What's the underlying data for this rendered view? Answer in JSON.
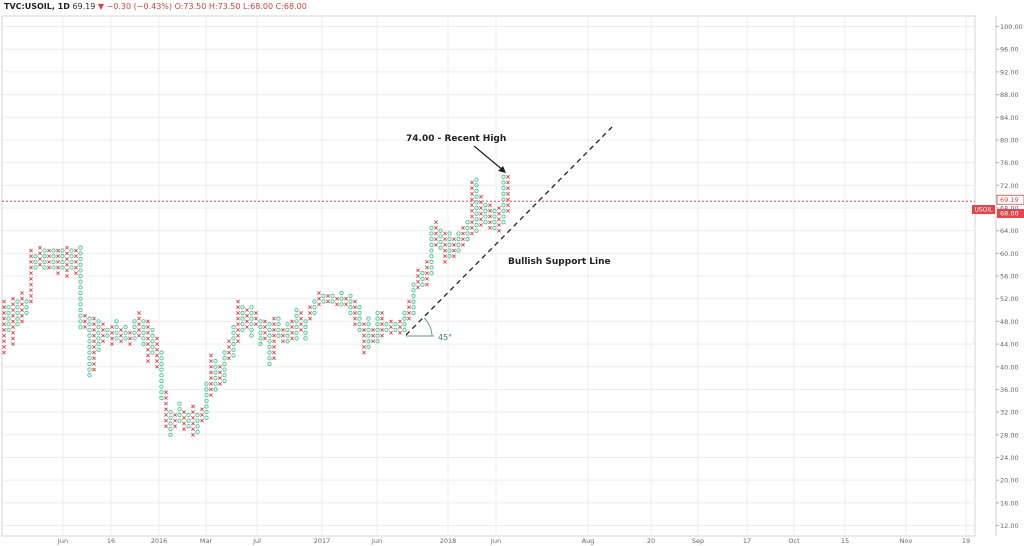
{
  "header": {
    "symbol": "TVC:USOIL, 1D",
    "last": "69.19",
    "arrow": "▼",
    "change": "−0.30 (−0.43%)",
    "ohlc": "O:73.50 H:73.50 L:68.00 C:68.00"
  },
  "colors": {
    "x_mark": "#e0474c",
    "o_mark": "#45c596",
    "price_line": "#e0474c",
    "grid": "#ececec",
    "axis_text": "#666666"
  },
  "chart_data": {
    "type": "point-and-figure",
    "instrument": "USOIL",
    "timeframe": "1D",
    "y_axis": {
      "ticks": [
        "100.00",
        "96.00",
        "92.00",
        "88.00",
        "84.00",
        "80.00",
        "76.00",
        "72.00",
        "68.00",
        "64.00",
        "60.00",
        "56.00",
        "52.00",
        "48.00",
        "44.00",
        "40.00",
        "36.00",
        "32.00",
        "28.00",
        "24.00",
        "20.00",
        "16.00",
        "12.00"
      ],
      "range": [
        10,
        102
      ]
    },
    "x_axis": {
      "ticks": [
        "Jun",
        "16",
        "2016",
        "Mar",
        "Jul",
        "2017",
        "Jun",
        "2018",
        "Jun",
        "Aug",
        "20",
        "Sep",
        "17",
        "Oct",
        "15",
        "Nov",
        "19"
      ]
    },
    "last_price_labels": [
      {
        "text": "69.19",
        "price": 69.19
      },
      {
        "text": "68.00",
        "price": 68.0
      }
    ],
    "price_badge": {
      "text": "USOIL",
      "price": 68.0
    },
    "columns": [
      {
        "bottom": 42.5,
        "top": 51.5
      },
      {
        "bottom": 46.5,
        "top": 50.5
      },
      {
        "bottom": 44.0,
        "top": 52.5
      },
      {
        "bottom": 47.5,
        "top": 51.5
      },
      {
        "bottom": 48.0,
        "top": 53.5
      },
      {
        "bottom": 49.5,
        "top": 52.0
      },
      {
        "bottom": 51.5,
        "top": 60.5
      },
      {
        "bottom": 57.5,
        "top": 60.0
      },
      {
        "bottom": 58.0,
        "top": 61.5
      },
      {
        "bottom": 57.5,
        "top": 60.5
      },
      {
        "bottom": 57.5,
        "top": 61.0
      },
      {
        "bottom": 57.5,
        "top": 60.5
      },
      {
        "bottom": 56.5,
        "top": 60.5
      },
      {
        "bottom": 57.5,
        "top": 61.0
      },
      {
        "bottom": 56.0,
        "top": 61.5
      },
      {
        "bottom": 57.5,
        "top": 60.5
      },
      {
        "bottom": 56.5,
        "top": 61.0
      },
      {
        "bottom": 47.0,
        "top": 61.0
      },
      {
        "bottom": 47.0,
        "top": 49.5
      },
      {
        "bottom": 38.5,
        "top": 49.0
      },
      {
        "bottom": 39.5,
        "top": 48.5
      },
      {
        "bottom": 43.0,
        "top": 48.0
      },
      {
        "bottom": 44.5,
        "top": 47.5
      },
      {
        "bottom": 45.5,
        "top": 47.0
      },
      {
        "bottom": 44.0,
        "top": 47.5
      },
      {
        "bottom": 45.0,
        "top": 48.0
      },
      {
        "bottom": 44.5,
        "top": 46.5
      },
      {
        "bottom": 45.0,
        "top": 47.5
      },
      {
        "bottom": 44.0,
        "top": 46.5
      },
      {
        "bottom": 45.0,
        "top": 48.5
      },
      {
        "bottom": 45.5,
        "top": 49.5
      },
      {
        "bottom": 44.0,
        "top": 48.5
      },
      {
        "bottom": 41.0,
        "top": 48.0
      },
      {
        "bottom": 42.5,
        "top": 46.5
      },
      {
        "bottom": 40.0,
        "top": 45.5
      },
      {
        "bottom": 34.5,
        "top": 42.5
      },
      {
        "bottom": 29.5,
        "top": 36.0
      },
      {
        "bottom": 28.0,
        "top": 32.5
      },
      {
        "bottom": 29.5,
        "top": 31.5
      },
      {
        "bottom": 30.5,
        "top": 33.5
      },
      {
        "bottom": 29.0,
        "top": 32.5
      },
      {
        "bottom": 29.5,
        "top": 31.5
      },
      {
        "bottom": 28.0,
        "top": 33.0
      },
      {
        "bottom": 28.5,
        "top": 31.5
      },
      {
        "bottom": 30.5,
        "top": 33.0
      },
      {
        "bottom": 31.0,
        "top": 37.0
      },
      {
        "bottom": 35.0,
        "top": 42.0
      },
      {
        "bottom": 36.0,
        "top": 41.5
      },
      {
        "bottom": 37.0,
        "top": 40.5
      },
      {
        "bottom": 37.5,
        "top": 43.0
      },
      {
        "bottom": 41.5,
        "top": 45.0
      },
      {
        "bottom": 42.0,
        "top": 47.5
      },
      {
        "bottom": 44.5,
        "top": 51.5
      },
      {
        "bottom": 46.5,
        "top": 50.5
      },
      {
        "bottom": 47.0,
        "top": 50.5
      },
      {
        "bottom": 45.5,
        "top": 50.5
      },
      {
        "bottom": 47.5,
        "top": 50.0
      },
      {
        "bottom": 44.0,
        "top": 48.5
      },
      {
        "bottom": 45.0,
        "top": 48.0
      },
      {
        "bottom": 40.5,
        "top": 47.5
      },
      {
        "bottom": 41.5,
        "top": 49.0
      },
      {
        "bottom": 45.5,
        "top": 48.5
      },
      {
        "bottom": 44.5,
        "top": 47.0
      },
      {
        "bottom": 44.5,
        "top": 48.0
      },
      {
        "bottom": 45.0,
        "top": 48.5
      },
      {
        "bottom": 45.0,
        "top": 50.5
      },
      {
        "bottom": 46.5,
        "top": 49.5
      },
      {
        "bottom": 45.0,
        "top": 48.0
      },
      {
        "bottom": 48.5,
        "top": 50.5
      },
      {
        "bottom": 49.5,
        "top": 52.0
      },
      {
        "bottom": 51.0,
        "top": 53.5
      },
      {
        "bottom": 51.5,
        "top": 53.0
      },
      {
        "bottom": 51.5,
        "top": 52.5
      },
      {
        "bottom": 51.5,
        "top": 53.0
      },
      {
        "bottom": 51.0,
        "top": 52.5
      },
      {
        "bottom": 51.0,
        "top": 53.5
      },
      {
        "bottom": 51.0,
        "top": 52.5
      },
      {
        "bottom": 49.5,
        "top": 53.0
      },
      {
        "bottom": 47.5,
        "top": 51.5
      },
      {
        "bottom": 46.5,
        "top": 51.0
      },
      {
        "bottom": 42.5,
        "top": 48.0
      },
      {
        "bottom": 43.5,
        "top": 48.5
      },
      {
        "bottom": 44.5,
        "top": 46.5
      },
      {
        "bottom": 44.5,
        "top": 50.0
      },
      {
        "bottom": 45.5,
        "top": 49.5
      },
      {
        "bottom": 46.5,
        "top": 48.0
      },
      {
        "bottom": 46.0,
        "top": 48.5
      },
      {
        "bottom": 46.5,
        "top": 47.5
      },
      {
        "bottom": 46.0,
        "top": 48.5
      },
      {
        "bottom": 46.5,
        "top": 49.5
      },
      {
        "bottom": 48.5,
        "top": 51.5
      },
      {
        "bottom": 49.5,
        "top": 55.0
      },
      {
        "bottom": 54.0,
        "top": 57.5
      },
      {
        "bottom": 54.5,
        "top": 57.0
      },
      {
        "bottom": 54.5,
        "top": 58.5
      },
      {
        "bottom": 56.5,
        "top": 65.0
      },
      {
        "bottom": 61.5,
        "top": 65.5
      },
      {
        "bottom": 61.0,
        "top": 64.5
      },
      {
        "bottom": 58.5,
        "top": 64.0
      },
      {
        "bottom": 59.5,
        "top": 63.5
      },
      {
        "bottom": 59.5,
        "top": 62.5
      },
      {
        "bottom": 60.5,
        "top": 64.0
      },
      {
        "bottom": 61.5,
        "top": 64.5
      },
      {
        "bottom": 62.5,
        "top": 66.0
      },
      {
        "bottom": 63.5,
        "top": 73.0
      },
      {
        "bottom": 64.0,
        "top": 73.0
      },
      {
        "bottom": 65.0,
        "top": 70.5
      },
      {
        "bottom": 65.5,
        "top": 69.0
      },
      {
        "bottom": 64.5,
        "top": 68.5
      },
      {
        "bottom": 64.5,
        "top": 68.0
      },
      {
        "bottom": 64.0,
        "top": 68.0
      },
      {
        "bottom": 65.5,
        "top": 74.0
      },
      {
        "bottom": 67.5,
        "top": 74.0
      }
    ],
    "annotations": [
      {
        "text": "74.00 - Recent High"
      },
      {
        "text": "Bullish Support Line"
      },
      {
        "text": "45°"
      }
    ]
  }
}
